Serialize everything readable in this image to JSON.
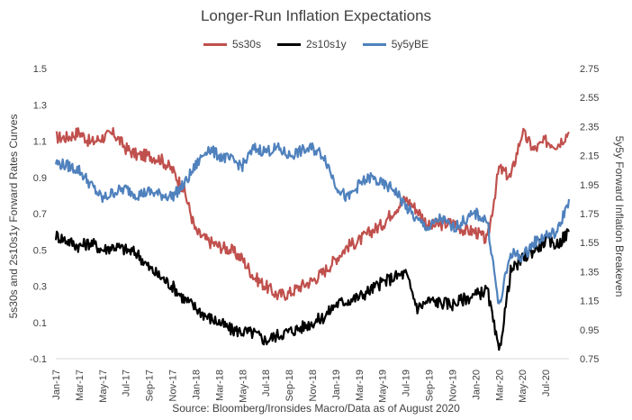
{
  "chart_data": {
    "type": "line",
    "title": "Longer-Run Inflation Expectations",
    "ylabel_left": "5s30s and 2s10s1y Forward Rates Curves",
    "ylabel_right": "5y5y Forward Inflation Breakeven",
    "source": "Source: Bloomberg/Ironsides Macro/Data as of August 2020",
    "y_left": {
      "ticks": [
        "1.5",
        "1.3",
        "1.1",
        "0.9",
        "0.7",
        "0.5",
        "0.3",
        "0.1",
        "-0.1"
      ],
      "range": [
        -0.1,
        1.5
      ]
    },
    "y_right": {
      "ticks": [
        "2.75",
        "2.55",
        "2.35",
        "2.15",
        "1.95",
        "1.75",
        "1.55",
        "1.35",
        "1.15",
        "0.95",
        "0.75"
      ],
      "range": [
        0.75,
        2.75
      ]
    },
    "x_labels": [
      "Jan-17",
      "Mar-17",
      "May-17",
      "Jul-17",
      "Sep-17",
      "Nov-17",
      "Jan-18",
      "Mar-18",
      "May-18",
      "Jul-18",
      "Sep-18",
      "Nov-18",
      "Jan-19",
      "Mar-19",
      "May-19",
      "Jul-19",
      "Sep-19",
      "Nov-19",
      "Jan-20",
      "Mar-20",
      "May-20",
      "Jul-20"
    ],
    "x_range": [
      "Jan-17",
      "Sep-20"
    ],
    "legend_position": "top",
    "series": [
      {
        "name": "5s30s",
        "color": "#c0504d",
        "axis": "left",
        "points": [
          [
            0,
            1.12
          ],
          [
            1,
            1.12
          ],
          [
            2,
            1.15
          ],
          [
            3,
            1.09
          ],
          [
            4,
            1.12
          ],
          [
            5,
            1.14
          ],
          [
            6,
            1.06
          ],
          [
            7,
            1.02
          ],
          [
            8,
            1.02
          ],
          [
            9,
            1.0
          ],
          [
            10,
            0.94
          ],
          [
            11,
            0.83
          ],
          [
            12,
            0.6
          ],
          [
            13,
            0.55
          ],
          [
            14,
            0.52
          ],
          [
            15,
            0.5
          ],
          [
            16,
            0.45
          ],
          [
            17,
            0.35
          ],
          [
            18,
            0.3
          ],
          [
            19,
            0.25
          ],
          [
            20,
            0.26
          ],
          [
            21,
            0.3
          ],
          [
            22,
            0.33
          ],
          [
            23,
            0.38
          ],
          [
            24,
            0.45
          ],
          [
            25,
            0.52
          ],
          [
            26,
            0.55
          ],
          [
            27,
            0.6
          ],
          [
            28,
            0.64
          ],
          [
            29,
            0.72
          ],
          [
            30,
            0.78
          ],
          [
            31,
            0.72
          ],
          [
            32,
            0.63
          ],
          [
            33,
            0.64
          ],
          [
            34,
            0.65
          ],
          [
            35,
            0.61
          ],
          [
            36,
            0.6
          ],
          [
            37,
            0.55
          ],
          [
            38,
            0.95
          ],
          [
            39,
            0.9
          ],
          [
            40,
            1.15
          ],
          [
            41,
            1.05
          ],
          [
            42,
            1.1
          ],
          [
            43,
            1.08
          ],
          [
            44,
            1.15
          ]
        ]
      },
      {
        "name": "2s10s1y",
        "color": "#000000",
        "axis": "left",
        "points": [
          [
            0,
            0.58
          ],
          [
            1,
            0.55
          ],
          [
            2,
            0.52
          ],
          [
            3,
            0.54
          ],
          [
            4,
            0.5
          ],
          [
            5,
            0.52
          ],
          [
            6,
            0.5
          ],
          [
            7,
            0.48
          ],
          [
            8,
            0.4
          ],
          [
            9,
            0.35
          ],
          [
            10,
            0.3
          ],
          [
            11,
            0.23
          ],
          [
            12,
            0.18
          ],
          [
            13,
            0.13
          ],
          [
            14,
            0.1
          ],
          [
            15,
            0.06
          ],
          [
            16,
            0.05
          ],
          [
            17,
            0.04
          ],
          [
            18,
            0.0
          ],
          [
            19,
            0.03
          ],
          [
            20,
            0.05
          ],
          [
            21,
            0.07
          ],
          [
            22,
            0.1
          ],
          [
            23,
            0.13
          ],
          [
            24,
            0.2
          ],
          [
            25,
            0.22
          ],
          [
            26,
            0.24
          ],
          [
            27,
            0.28
          ],
          [
            28,
            0.32
          ],
          [
            29,
            0.35
          ],
          [
            30,
            0.37
          ],
          [
            31,
            0.18
          ],
          [
            32,
            0.22
          ],
          [
            33,
            0.21
          ],
          [
            34,
            0.2
          ],
          [
            35,
            0.23
          ],
          [
            36,
            0.25
          ],
          [
            37,
            0.28
          ],
          [
            38,
            -0.07
          ],
          [
            39,
            0.38
          ],
          [
            40,
            0.45
          ],
          [
            41,
            0.5
          ],
          [
            42,
            0.55
          ],
          [
            43,
            0.53
          ],
          [
            44,
            0.6
          ]
        ]
      },
      {
        "name": "5y5yBE",
        "color": "#4f81bd",
        "axis": "right",
        "points": [
          [
            0,
            2.1
          ],
          [
            1,
            2.08
          ],
          [
            2,
            2.05
          ],
          [
            3,
            1.95
          ],
          [
            4,
            1.85
          ],
          [
            5,
            1.9
          ],
          [
            6,
            1.92
          ],
          [
            7,
            1.88
          ],
          [
            8,
            1.9
          ],
          [
            9,
            1.88
          ],
          [
            10,
            1.87
          ],
          [
            11,
            1.95
          ],
          [
            12,
            2.08
          ],
          [
            13,
            2.2
          ],
          [
            14,
            2.15
          ],
          [
            15,
            2.12
          ],
          [
            16,
            2.08
          ],
          [
            17,
            2.2
          ],
          [
            18,
            2.18
          ],
          [
            19,
            2.2
          ],
          [
            20,
            2.15
          ],
          [
            21,
            2.18
          ],
          [
            22,
            2.2
          ],
          [
            23,
            2.15
          ],
          [
            24,
            1.95
          ],
          [
            25,
            1.85
          ],
          [
            26,
            1.95
          ],
          [
            27,
            2.0
          ],
          [
            28,
            1.95
          ],
          [
            29,
            1.92
          ],
          [
            30,
            1.8
          ],
          [
            31,
            1.7
          ],
          [
            32,
            1.65
          ],
          [
            33,
            1.72
          ],
          [
            34,
            1.65
          ],
          [
            35,
            1.7
          ],
          [
            36,
            1.75
          ],
          [
            37,
            1.7
          ],
          [
            38,
            1.1
          ],
          [
            39,
            1.48
          ],
          [
            40,
            1.45
          ],
          [
            41,
            1.55
          ],
          [
            42,
            1.6
          ],
          [
            43,
            1.62
          ],
          [
            44,
            1.85
          ]
        ]
      }
    ]
  }
}
